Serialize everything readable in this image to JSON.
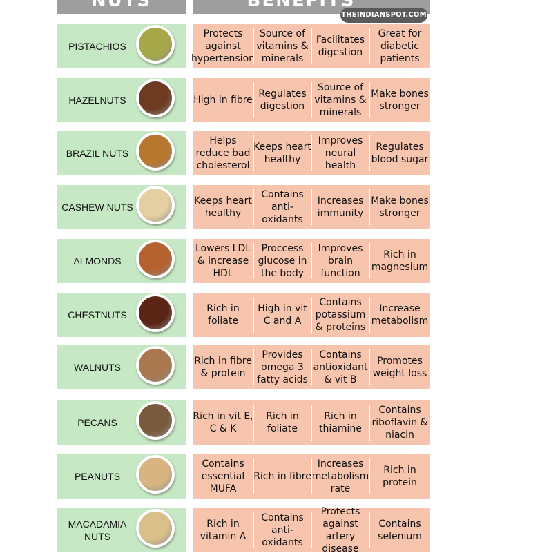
{
  "headers": {
    "nuts": "NUTS",
    "benefits": "BENEFITS"
  },
  "watermark": "THEINDIANSPOT.COM",
  "colors": {
    "nut_cell": "#c6e8c4",
    "benefit_cell": "#f7c4ad",
    "header": "#9e9e9e"
  },
  "rows": [
    {
      "name": "PISTACHIOS",
      "icon": "pistachio-bowl-icon",
      "nut_color": "#a7a84a",
      "benefits": [
        "Protects against hypertension",
        "Source of vitamins & minerals",
        "Facilitates digestion",
        "Great for diabetic patients"
      ]
    },
    {
      "name": "HAZELNUTS",
      "icon": "hazelnut-bowl-icon",
      "nut_color": "#6e3a22",
      "benefits": [
        "High in fibre",
        "Regulates digestion",
        "Source of vitamins & minerals",
        "Make bones stronger"
      ]
    },
    {
      "name": "BRAZIL NUTS",
      "icon": "brazil-nut-bowl-icon",
      "nut_color": "#b8772e",
      "benefits": [
        "Helps reduce bad cholesterol",
        "Keeps heart healthy",
        "Improves neural health",
        "Regulates blood sugar"
      ]
    },
    {
      "name": "CASHEW NUTS",
      "icon": "cashew-bowl-icon",
      "nut_color": "#e3cfa2",
      "benefits": [
        "Keeps heart healthy",
        "Contains anti-oxidants",
        "Increases immunity",
        "Make bones stronger"
      ]
    },
    {
      "name": "ALMONDS",
      "icon": "almond-bowl-icon",
      "nut_color": "#b4622f",
      "benefits": [
        "Lowers LDL & increase HDL",
        "Proccess glucose in the body",
        "Improves brain function",
        "Rich in magnesium"
      ]
    },
    {
      "name": "CHESTNUTS",
      "icon": "chestnut-bowl-icon",
      "nut_color": "#5a2515",
      "benefits": [
        "Rich in foliate",
        "High in vit C and A",
        "Contains potassium & proteins",
        "Increase metabolism"
      ]
    },
    {
      "name": "WALNUTS",
      "icon": "walnut-bowl-icon",
      "nut_color": "#a9784f",
      "benefits": [
        "Rich in fibre & protein",
        "Provides omega 3 fatty acids",
        "Contains antioxidant & vit B",
        "Promotes weight loss"
      ]
    },
    {
      "name": "PECANS",
      "icon": "pecan-bowl-icon",
      "nut_color": "#7a5a3c",
      "benefits": [
        "Rich in vit E, C & K",
        "Rich in foliate",
        "Rich in thiamine",
        "Contains riboflavin & niacin"
      ]
    },
    {
      "name": "PEANUTS",
      "icon": "peanut-bowl-icon",
      "nut_color": "#d8b580",
      "benefits": [
        "Contains essential MUFA",
        "Rich in fibre",
        "Increases metabolism rate",
        "Rich in protein"
      ]
    },
    {
      "name": "MACADAMIA NUTS",
      "icon": "macadamia-bowl-icon",
      "nut_color": "#d9c08a",
      "benefits": [
        "Rich in vitamin A",
        "Contains anti-oxidants",
        "Protects against artery disease",
        "Contains selenium"
      ]
    }
  ]
}
